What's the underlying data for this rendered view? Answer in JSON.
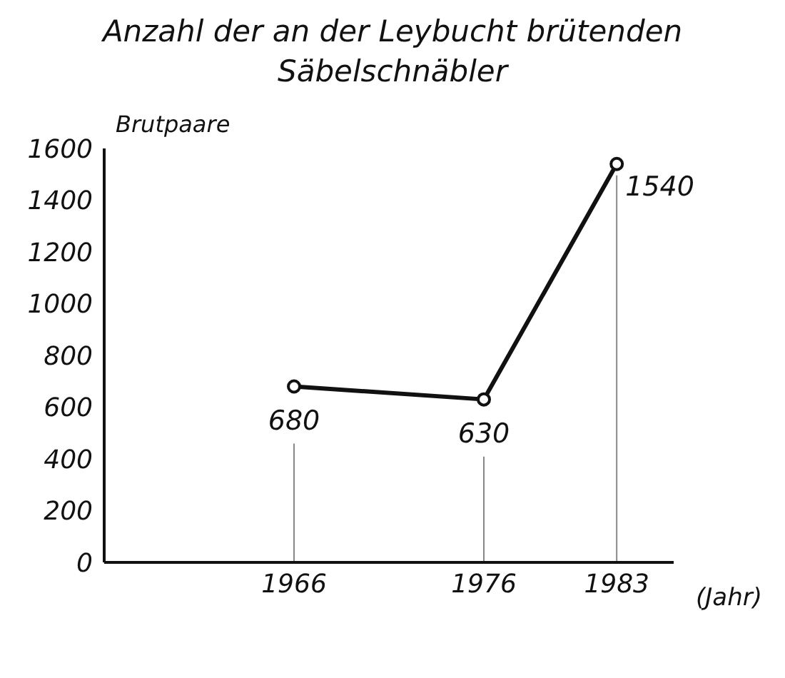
{
  "chart_data": {
    "type": "line",
    "title": "Anzahl der an der Leybucht brütenden Säbelschnäbler",
    "ylabel": "Brutpaare",
    "xlabel": "(Jahr)",
    "x": [
      1966,
      1976,
      1983
    ],
    "series": [
      {
        "color": "#111111",
        "values": [
          680,
          630,
          1540
        ]
      }
    ],
    "xlim": [
      1956,
      1986
    ],
    "xticks": [
      1966,
      1976,
      1983
    ],
    "ylim": [
      0,
      1600
    ],
    "yticks": [
      0,
      200,
      400,
      600,
      800,
      1000,
      1200,
      1400,
      1600
    ],
    "ref_lines": [
      {
        "axis": "x",
        "value": 1966,
        "color": "#888888"
      },
      {
        "axis": "x",
        "value": 1976,
        "color": "#888888"
      },
      {
        "axis": "x",
        "value": 1983,
        "color": "#888888"
      }
    ],
    "data_labels": true,
    "marker": "circle",
    "line_style": "solid",
    "grid": false,
    "legend": false
  }
}
